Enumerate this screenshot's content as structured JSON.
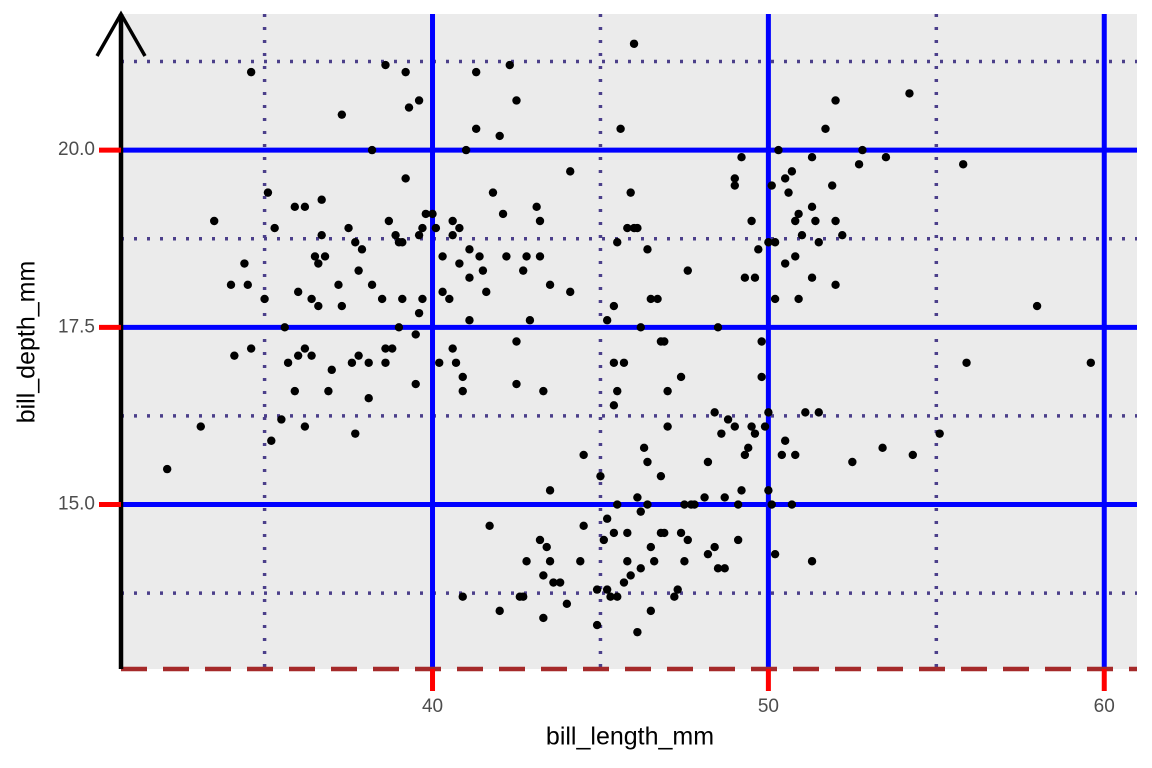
{
  "chart_data": {
    "type": "scatter",
    "xlabel": "bill_length_mm",
    "ylabel": "bill_depth_mm",
    "color": "#000000",
    "xlim": [
      30.725,
      60.975
    ],
    "ylim": [
      12.68,
      21.92
    ],
    "xticks": [
      40,
      50,
      60
    ],
    "yticks": [
      {
        "value": 15,
        "label": "15.0"
      },
      {
        "value": 17.5,
        "label": "17.5"
      },
      {
        "value": 20,
        "label": "20.0"
      }
    ],
    "x_minor_ticks": [
      35,
      45,
      55
    ],
    "y_minor_ticks": [
      13.75,
      16.25,
      18.75,
      21.25
    ],
    "grid": true,
    "x": [
      32.1,
      33.1,
      33.5,
      34.0,
      34.1,
      34.4,
      34.5,
      34.6,
      34.6,
      35.0,
      35.1,
      35.2,
      35.3,
      35.5,
      35.6,
      35.7,
      35.9,
      36.0,
      36.0,
      36.2,
      36.2,
      36.2,
      36.4,
      36.4,
      36.5,
      36.6,
      36.6,
      36.7,
      36.7,
      36.8,
      36.9,
      37.0,
      37.2,
      37.3,
      37.3,
      37.5,
      37.6,
      37.7,
      37.7,
      37.8,
      37.8,
      37.9,
      38.1,
      38.1,
      38.2,
      38.2,
      38.5,
      38.6,
      38.6,
      38.6,
      38.7,
      38.8,
      38.9,
      39.0,
      39.0,
      39.1,
      39.2,
      39.2,
      39.3,
      39.5,
      39.5,
      39.6,
      39.6,
      39.7,
      39.7,
      39.8,
      39.6,
      40.1,
      40.2,
      40.3,
      40.3,
      40.5,
      40.6,
      40.6,
      40.6,
      40.7,
      40.8,
      40.9,
      40.9,
      41.0,
      41.1,
      41.1,
      41.1,
      41.3,
      41.3,
      41.4,
      41.5,
      41.6,
      41.8,
      42.0,
      42.1,
      42.2,
      42.3,
      42.5,
      42.5,
      42.5,
      42.7,
      42.8,
      42.9,
      43.1,
      43.2,
      43.2,
      43.3,
      43.5,
      44.1,
      44.1,
      45.8,
      46.0,
      35.9,
      40.8,
      40.0,
      39.1,
      40.9,
      41.7,
      42.0,
      42.6,
      42.7,
      42.8,
      43.2,
      43.3,
      43.4,
      43.3,
      43.5,
      43.6,
      43.8,
      44.0,
      44.4,
      44.5,
      44.5,
      44.9,
      44.9,
      45.0,
      45.1,
      45.2,
      45.2,
      45.3,
      45.4,
      45.5,
      45.5,
      45.7,
      45.8,
      45.8,
      45.9,
      46.1,
      46.1,
      46.2,
      46.2,
      46.3,
      46.4,
      46.4,
      46.5,
      46.5,
      46.6,
      46.8,
      46.8,
      46.9,
      47.0,
      47.2,
      47.3,
      47.4,
      47.5,
      47.5,
      47.6,
      47.7,
      47.8,
      48.1,
      48.2,
      48.2,
      48.4,
      48.4,
      48.5,
      48.6,
      48.7,
      48.7,
      48.8,
      49.0,
      49.1,
      49.1,
      49.2,
      49.3,
      49.4,
      49.5,
      49.6,
      49.8,
      49.9,
      50.0,
      50.0,
      50.1,
      50.2,
      50.4,
      50.5,
      50.7,
      50.8,
      51.1,
      51.3,
      51.5,
      52.5,
      53.4,
      54.3,
      55.1,
      55.9,
      59.6,
      43.5,
      45.4,
      45.5,
      47.4,
      47.0,
      45.4,
      46.5,
      46.7,
      46.8,
      45.9,
      45.5,
      46.0,
      46.1,
      45.6,
      46.4,
      46.2,
      45.2,
      45.4,
      45.7,
      46.9,
      47.6,
      48.5,
      49.0,
      49.0,
      49.2,
      49.3,
      49.5,
      49.6,
      49.7,
      49.8,
      50.0,
      50.1,
      50.2,
      50.2,
      50.3,
      50.5,
      50.5,
      50.6,
      50.7,
      50.8,
      50.8,
      50.9,
      50.9,
      51.0,
      51.3,
      51.3,
      51.3,
      51.4,
      51.5,
      51.7,
      51.9,
      52.0,
      52.0,
      52.0,
      52.2,
      52.7,
      52.8,
      53.5,
      54.2,
      55.8,
      58.0
    ],
    "values": [
      15.5,
      16.1,
      19.0,
      18.1,
      17.1,
      18.4,
      18.1,
      17.2,
      21.1,
      17.9,
      19.4,
      15.9,
      18.9,
      16.2,
      17.5,
      17.0,
      16.6,
      18.0,
      17.1,
      17.2,
      16.1,
      19.2,
      17.1,
      17.9,
      18.5,
      17.8,
      18.4,
      19.3,
      18.8,
      18.5,
      16.6,
      16.9,
      18.1,
      17.8,
      20.5,
      18.9,
      17.0,
      16.0,
      18.7,
      18.3,
      17.1,
      18.6,
      16.5,
      17.0,
      18.1,
      20.0,
      17.9,
      21.2,
      17.2,
      17.0,
      19.0,
      17.2,
      18.8,
      17.5,
      18.7,
      18.7,
      19.6,
      21.1,
      20.6,
      17.4,
      16.7,
      17.7,
      18.8,
      18.9,
      17.9,
      19.1,
      20.7,
      18.9,
      17.0,
      18.0,
      18.5,
      17.9,
      18.8,
      19.0,
      17.2,
      17.0,
      18.4,
      16.8,
      16.6,
      20.0,
      17.6,
      18.2,
      18.6,
      20.3,
      21.1,
      18.5,
      18.3,
      18.0,
      19.4,
      20.2,
      19.1,
      18.5,
      21.2,
      20.7,
      17.3,
      16.7,
      18.3,
      18.5,
      17.6,
      19.2,
      19.0,
      18.5,
      16.6,
      18.1,
      19.7,
      18.0,
      18.9,
      21.5,
      19.2,
      18.9,
      19.1,
      17.9,
      13.7,
      14.7,
      13.5,
      13.7,
      13.7,
      14.2,
      14.5,
      13.4,
      14.4,
      14.0,
      14.2,
      13.9,
      13.9,
      13.6,
      14.2,
      14.7,
      15.7,
      13.8,
      13.3,
      15.4,
      14.5,
      13.8,
      14.8,
      13.7,
      14.6,
      13.7,
      15.0,
      13.9,
      14.2,
      14.6,
      14.0,
      15.1,
      13.2,
      14.1,
      14.9,
      15.8,
      15.6,
      15.0,
      13.5,
      14.4,
      14.2,
      14.6,
      15.4,
      14.6,
      16.1,
      13.7,
      13.8,
      14.6,
      15.0,
      14.2,
      14.5,
      15.0,
      15.0,
      15.1,
      14.3,
      15.6,
      14.4,
      16.3,
      14.1,
      16.0,
      14.1,
      15.1,
      16.2,
      16.1,
      14.5,
      15.0,
      15.2,
      15.7,
      15.8,
      16.1,
      16.0,
      16.8,
      16.1,
      15.2,
      16.3,
      15.0,
      14.3,
      15.7,
      15.9,
      15.0,
      15.7,
      16.3,
      14.2,
      16.3,
      15.6,
      15.8,
      15.7,
      16.0,
      17.0,
      17.0,
      15.2,
      16.4,
      16.6,
      16.8,
      16.6,
      17.8,
      17.9,
      17.9,
      17.3,
      19.4,
      18.7,
      18.9,
      18.9,
      20.3,
      18.6,
      17.5,
      17.6,
      17.0,
      17.0,
      17.3,
      18.3,
      17.5,
      19.5,
      19.6,
      19.9,
      18.2,
      19.0,
      18.2,
      18.6,
      17.3,
      18.7,
      19.5,
      17.9,
      18.7,
      20.0,
      18.4,
      19.6,
      19.4,
      19.7,
      18.5,
      19.0,
      17.9,
      19.1,
      18.8,
      18.2,
      19.2,
      19.9,
      19.0,
      18.7,
      20.3,
      19.5,
      18.1,
      19.0,
      20.7,
      18.8,
      19.8,
      20.0,
      19.9,
      20.8,
      19.8,
      17.8
    ]
  }
}
